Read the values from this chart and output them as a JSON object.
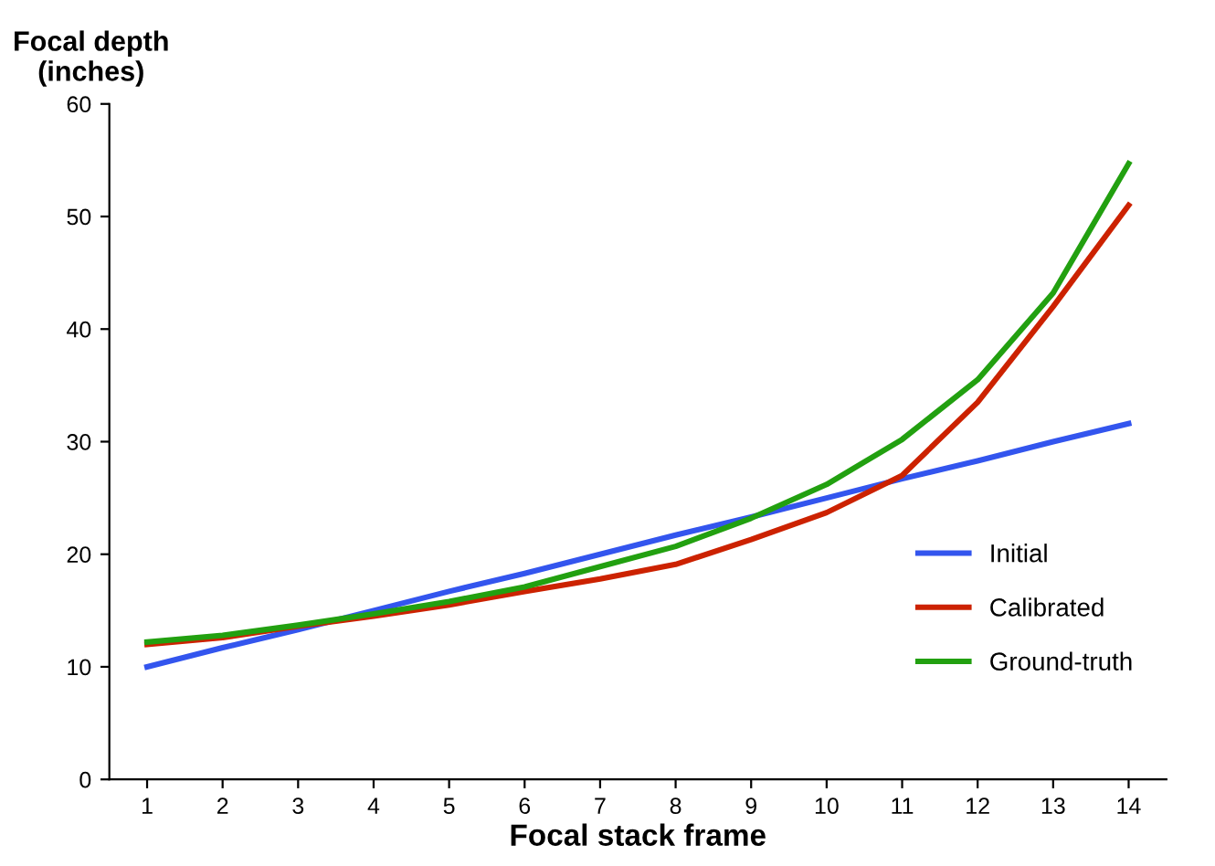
{
  "chart_data": {
    "type": "line",
    "xlabel": "Focal stack frame",
    "ylabel": "Focal depth\n(inches)",
    "categories": [
      "1",
      "2",
      "3",
      "4",
      "5",
      "6",
      "7",
      "8",
      "9",
      "10",
      "11",
      "12",
      "13",
      "14"
    ],
    "series": [
      {
        "name": "Initial",
        "color": "#3355ee",
        "values": [
          10,
          11.7,
          13.3,
          15,
          16.7,
          18.3,
          20,
          21.7,
          23.3,
          25,
          26.7,
          28.3,
          30,
          31.6
        ]
      },
      {
        "name": "Calibrated",
        "color": "#cc2200",
        "values": [
          12,
          12.6,
          13.6,
          14.5,
          15.5,
          16.7,
          17.8,
          19.1,
          21.3,
          23.7,
          27,
          33.5,
          42,
          51
        ]
      },
      {
        "name": "Ground-truth",
        "color": "#22a010",
        "values": [
          12.2,
          12.8,
          13.7,
          14.7,
          15.8,
          17.1,
          18.9,
          20.7,
          23.2,
          26.2,
          30.2,
          35.5,
          43.2,
          54.7
        ]
      }
    ],
    "ylim": [
      0,
      60
    ],
    "yticks": [
      0,
      10,
      20,
      30,
      40,
      50,
      60
    ],
    "grid": false,
    "legend": "bottom right",
    "marker": "none",
    "line_style": "solid"
  }
}
